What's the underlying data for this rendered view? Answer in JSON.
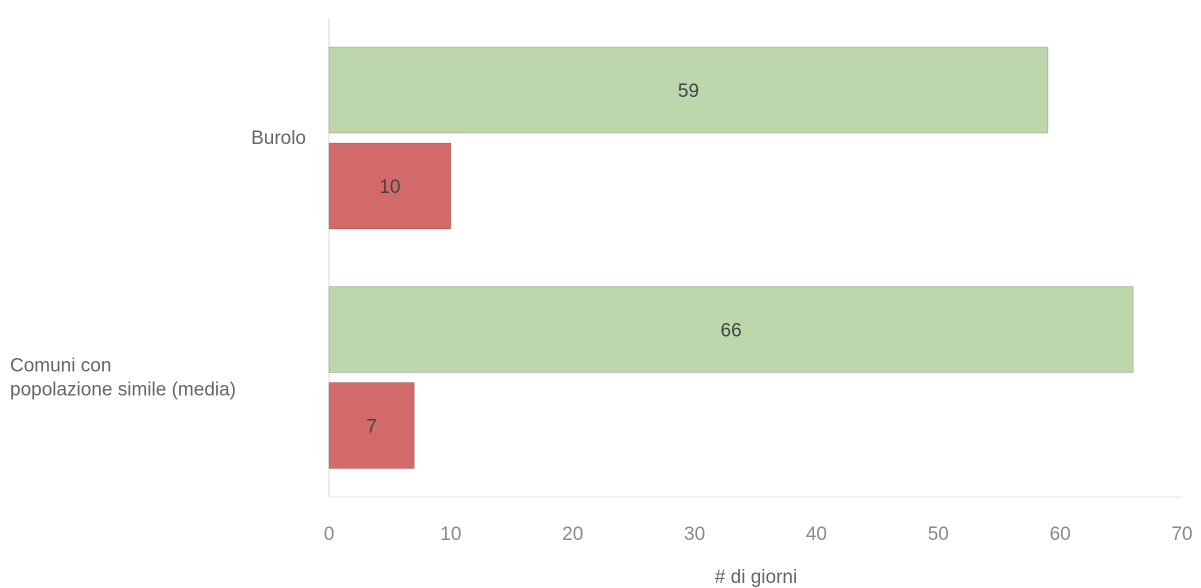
{
  "chart_data": {
    "type": "bar",
    "orientation": "horizontal",
    "categories": [
      [
        "Burolo"
      ],
      [
        "Comuni con",
        "popolazione simile (media)"
      ]
    ],
    "series": [
      {
        "values": [
          59,
          66
        ],
        "color": "#bdd7ad"
      },
      {
        "values": [
          10,
          7
        ],
        "color": "#d26a69"
      }
    ],
    "xlabel": "# di giorni",
    "xlim": [
      0,
      70
    ],
    "xticks": [
      0,
      10,
      20,
      30,
      40,
      50,
      60,
      70
    ],
    "grid": false,
    "legend": "none"
  }
}
